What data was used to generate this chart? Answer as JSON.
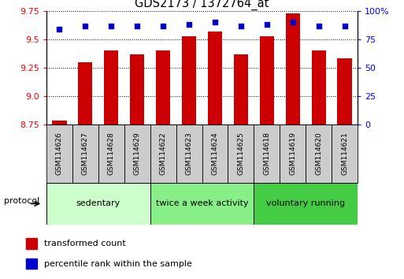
{
  "title": "GDS2173 / 1372764_at",
  "samples": [
    "GSM114626",
    "GSM114627",
    "GSM114628",
    "GSM114629",
    "GSM114622",
    "GSM114623",
    "GSM114624",
    "GSM114625",
    "GSM114618",
    "GSM114619",
    "GSM114620",
    "GSM114621"
  ],
  "bar_values": [
    8.78,
    9.3,
    9.4,
    9.37,
    9.4,
    9.53,
    9.57,
    9.37,
    9.53,
    9.73,
    9.4,
    9.33
  ],
  "dot_values": [
    84,
    87,
    87,
    87,
    87,
    88,
    90,
    87,
    88,
    90,
    87,
    87
  ],
  "bar_bottom": 8.75,
  "ylim_left": [
    8.75,
    9.75
  ],
  "ylim_right": [
    0,
    100
  ],
  "yticks_left": [
    8.75,
    9.0,
    9.25,
    9.5,
    9.75
  ],
  "yticks_right": [
    0,
    25,
    50,
    75,
    100
  ],
  "ytick_labels_right": [
    "0",
    "25",
    "50",
    "75",
    "100%"
  ],
  "bar_color": "#cc0000",
  "dot_color": "#0000cc",
  "groups": [
    {
      "label": "sedentary",
      "start": 0,
      "end": 4,
      "color": "#ccffcc"
    },
    {
      "label": "twice a week activity",
      "start": 4,
      "end": 8,
      "color": "#88ee88"
    },
    {
      "label": "voluntary running",
      "start": 8,
      "end": 12,
      "color": "#44cc44"
    }
  ],
  "sample_box_color": "#cccccc",
  "protocol_label": "protocol",
  "legend_bar_label": "transformed count",
  "legend_dot_label": "percentile rank within the sample",
  "bar_width": 0.55,
  "tick_label_fontsize": 7.5,
  "title_fontsize": 10.5
}
